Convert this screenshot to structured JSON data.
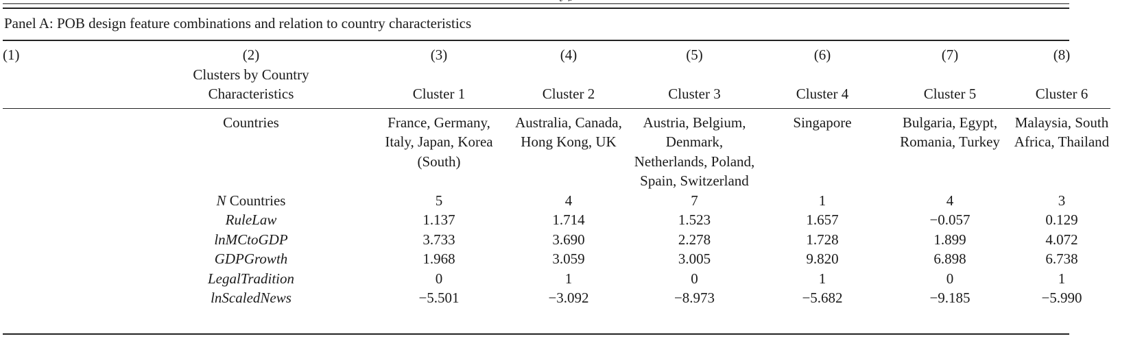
{
  "header_fragment": "y          g",
  "panel_title": "Panel A: POB design feature combinations and relation to country characteristics",
  "columns": {
    "numbers": [
      "(1)",
      "(2)",
      "(3)",
      "(4)",
      "(5)",
      "(6)",
      "(7)",
      "(8)"
    ],
    "col2_header": "Clusters by Country Characteristics",
    "clusters": [
      "Cluster 1",
      "Cluster 2",
      "Cluster 3",
      "Cluster 4",
      "Cluster 5",
      "Cluster 6"
    ]
  },
  "countries_label": "Countries",
  "countries": [
    "France, Germany, Italy, Japan, Korea (South)",
    "Australia, Canada, Hong Kong, UK",
    "Austria, Belgium, Denmark, Netherlands, Poland, Spain, Switzerland",
    "Singapore",
    "Bulgaria, Egypt, Romania, Turkey",
    "Malaysia, South Africa, Thailand"
  ],
  "rows": [
    {
      "label_italic": "N",
      "label_rest": " Countries",
      "values": [
        "5",
        "4",
        "7",
        "1",
        "4",
        "3"
      ]
    },
    {
      "label_italic": "RuleLaw",
      "label_rest": "",
      "values": [
        "1.137",
        "1.714",
        "1.523",
        "1.657",
        "−0.057",
        "0.129"
      ]
    },
    {
      "label_italic": "lnMCtoGDP",
      "label_rest": "",
      "values": [
        "3.733",
        "3.690",
        "2.278",
        "1.728",
        "1.899",
        "4.072"
      ]
    },
    {
      "label_italic": "GDPGrowth",
      "label_rest": "",
      "values": [
        "1.968",
        "3.059",
        "3.005",
        "9.820",
        "6.898",
        "6.738"
      ]
    },
    {
      "label_italic": "LegalTradition",
      "label_rest": "",
      "values": [
        "0",
        "1",
        "0",
        "1",
        "0",
        "1"
      ]
    },
    {
      "label_italic": "lnScaledNews",
      "label_rest": "",
      "values": [
        "−5.501",
        "−3.092",
        "−8.973",
        "−5.682",
        "−9.185",
        "−5.990"
      ]
    }
  ]
}
